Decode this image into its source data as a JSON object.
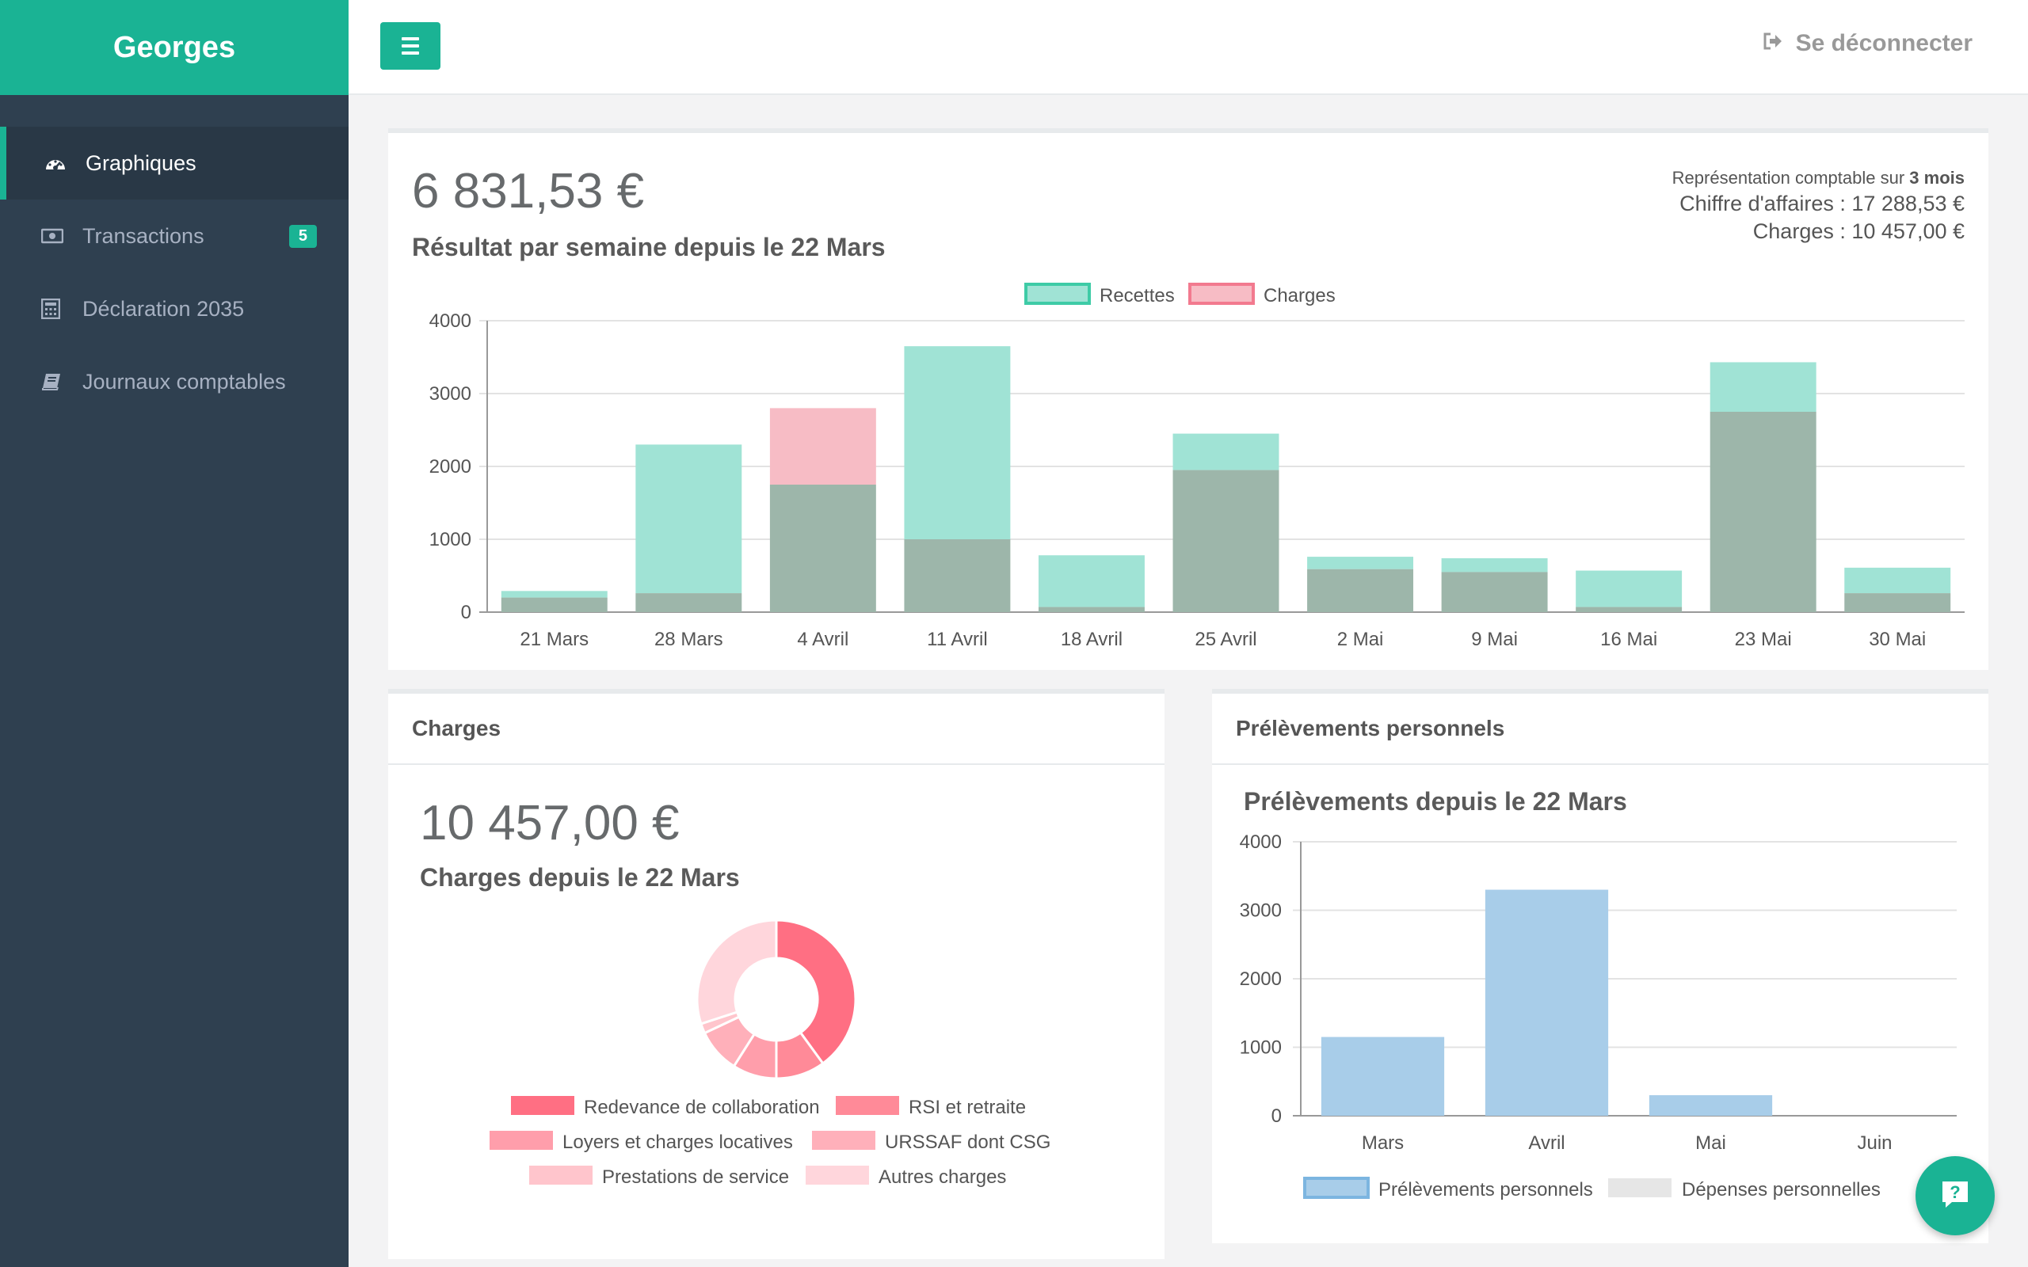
{
  "app": {
    "brand": "Georges"
  },
  "sidebar": {
    "items": [
      {
        "label": "Graphiques",
        "icon": "dashboard-icon",
        "active": true
      },
      {
        "label": "Transactions",
        "icon": "money-icon",
        "badge": "5"
      },
      {
        "label": "Déclaration 2035",
        "icon": "calculator-icon"
      },
      {
        "label": "Journaux comptables",
        "icon": "book-icon"
      }
    ]
  },
  "topbar": {
    "logout_label": "Se déconnecter"
  },
  "summary": {
    "amount": "6 831,53 €",
    "title": "Résultat par semaine depuis le 22 Mars",
    "period_prefix": "Représentation comptable sur ",
    "period_value": "3 mois",
    "revenue": "Chiffre d'affaires : 17 288,53 €",
    "expenses": "Charges : 10 457,00 €"
  },
  "charges_panel": {
    "heading": "Charges",
    "amount": "10 457,00 €",
    "title": "Charges depuis le 22 Mars"
  },
  "prelev_panel": {
    "heading": "Prélèvements personnels",
    "title": "Prélèvements depuis le 22 Mars"
  },
  "colors": {
    "accent": "#1ab394",
    "sidebar": "#2f4050",
    "recettes": "#a0e3d5",
    "charges": "#f7bcc5",
    "overlap": "#9db6aa",
    "prelevements": "#a8cde9"
  },
  "chart_data": [
    {
      "type": "bar",
      "stacked_overlay": true,
      "categories": [
        "21 Mars",
        "28 Mars",
        "4 Avril",
        "11 Avril",
        "18 Avril",
        "25 Avril",
        "2 Mai",
        "9 Mai",
        "16 Mai",
        "23 Mai",
        "30 Mai"
      ],
      "series": [
        {
          "name": "Recettes",
          "values": [
            290,
            2300,
            1750,
            3650,
            780,
            2450,
            760,
            740,
            570,
            3430,
            610
          ]
        },
        {
          "name": "Charges",
          "values": [
            200,
            260,
            2800,
            1000,
            70,
            1950,
            590,
            550,
            70,
            2750,
            260
          ]
        }
      ],
      "ylim": [
        0,
        4000
      ],
      "yticks": [
        0,
        1000,
        2000,
        3000,
        4000
      ],
      "legend": "top-center",
      "grid": true
    },
    {
      "type": "pie",
      "donut": true,
      "labels": [
        "Redevance de collaboration",
        "RSI et retraite",
        "Loyers et charges locatives",
        "URSSAF dont CSG",
        "Prestations de service",
        "Autres charges"
      ],
      "values": [
        40,
        10,
        9,
        9,
        2,
        30
      ],
      "colors": [
        "#ff6f83",
        "#ff8a98",
        "#ff9eab",
        "#ffb0ba",
        "#ffc5cc",
        "#ffd6dc"
      ],
      "legend": "bottom"
    },
    {
      "type": "bar",
      "categories": [
        "Mars",
        "Avril",
        "Mai",
        "Juin"
      ],
      "series": [
        {
          "name": "Prélèvements personnels",
          "values": [
            1150,
            3300,
            300,
            0
          ]
        },
        {
          "name": "Dépenses personnelles",
          "values": [
            0,
            0,
            0,
            0
          ]
        }
      ],
      "ylim": [
        0,
        4000
      ],
      "yticks": [
        0,
        1000,
        2000,
        3000,
        4000
      ],
      "legend": "bottom",
      "grid": true
    }
  ]
}
